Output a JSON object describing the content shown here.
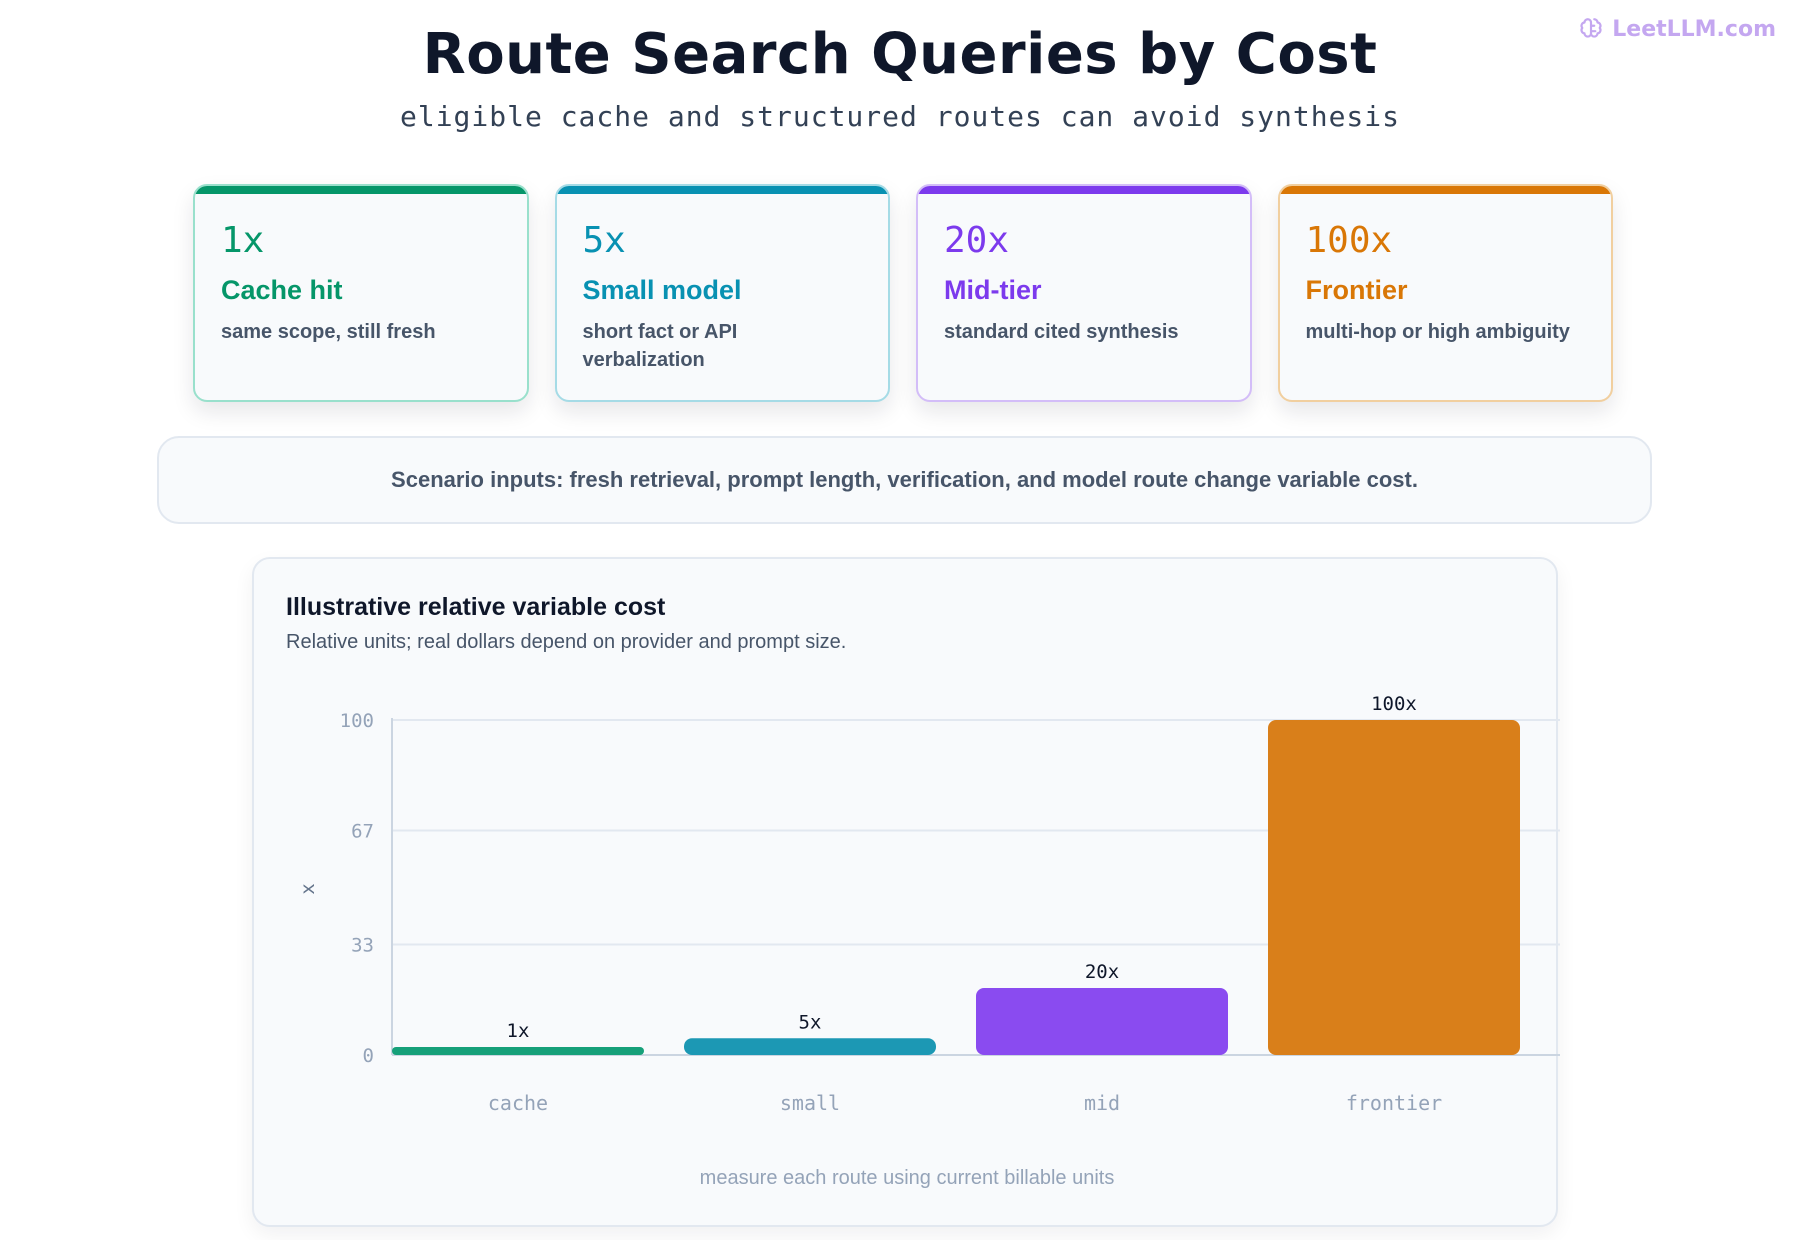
{
  "brand": {
    "name": "LeetLLM.com",
    "icon": "brain-icon"
  },
  "header": {
    "title": "Route Search Queries by Cost",
    "subtitle": "eligible cache and structured routes can avoid synthesis"
  },
  "cards": [
    {
      "multiplier": "1x",
      "name": "Cache hit",
      "desc": "same scope, still fresh",
      "color": "#059669",
      "border": "#99e0cc"
    },
    {
      "multiplier": "5x",
      "name": "Small model",
      "desc": "short fact or API verbalization",
      "color": "#0891b2",
      "border": "#a5dbe6"
    },
    {
      "multiplier": "20x",
      "name": "Mid-tier",
      "desc": "standard cited synthesis",
      "color": "#7c3aed",
      "border": "#d3bdf8"
    },
    {
      "multiplier": "100x",
      "name": "Frontier",
      "desc": "multi-hop or high ambiguity",
      "color": "#d97706",
      "border": "#f1cf9f"
    }
  ],
  "banner": {
    "text": "Scenario inputs: fresh retrieval, prompt length, verification, and model route change variable cost."
  },
  "panel": {
    "title": "Illustrative relative variable cost",
    "subtitle": "Relative units; real dollars depend on provider and prompt size.",
    "footnote": "measure each route using current billable units"
  },
  "chart_data": {
    "type": "bar",
    "title": "Illustrative relative variable cost",
    "categories": [
      "cache",
      "small",
      "mid",
      "frontier"
    ],
    "values": [
      1,
      5,
      20,
      100
    ],
    "value_labels": [
      "1x",
      "5x",
      "20x",
      "100x"
    ],
    "colors": [
      "#16a079",
      "#1c98b4",
      "#8a4bf0",
      "#d97f1a"
    ],
    "ylabel": "x",
    "xlabel": "",
    "ylim": [
      0,
      100
    ],
    "yticks": [
      0,
      33,
      67,
      100
    ],
    "grid": true
  }
}
